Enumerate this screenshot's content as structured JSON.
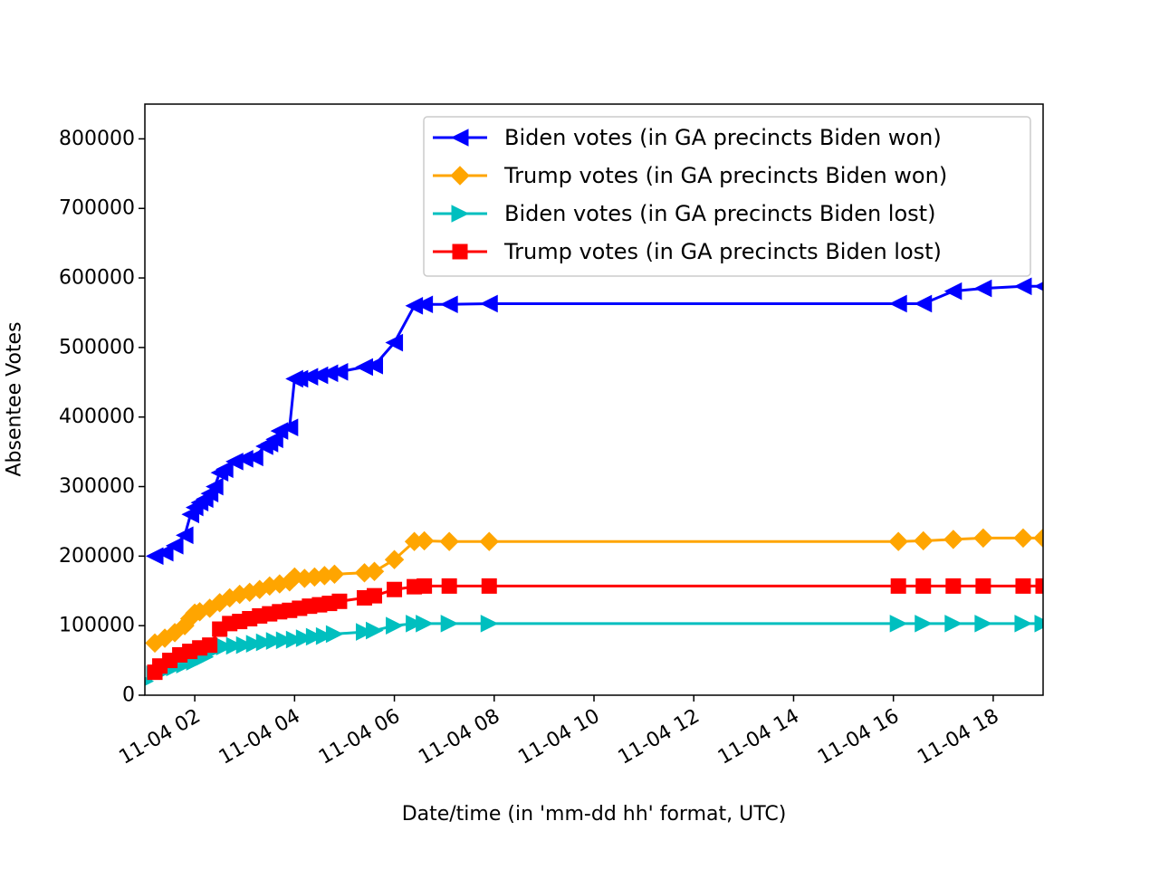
{
  "chart_data": {
    "type": "line",
    "title": "",
    "xlabel": "Date/time (in 'mm-dd hh' format, UTC)",
    "ylabel": "Absentee Votes",
    "xlim": [
      "11-04 01:00",
      "11-04 19:00"
    ],
    "ylim": [
      0,
      850000
    ],
    "legend_position": "top-right",
    "grid": false,
    "x_tick_labels": [
      "11-04 02",
      "11-04 04",
      "11-04 06",
      "11-04 08",
      "11-04 10",
      "11-04 12",
      "11-04 14",
      "11-04 16",
      "11-04 18"
    ],
    "y_tick_labels": [
      "0",
      "100000",
      "200000",
      "300000",
      "400000",
      "500000",
      "600000",
      "700000",
      "800000"
    ],
    "series": [
      {
        "name": "Biden votes (in GA precincts Biden won)",
        "color": "#0000ff",
        "marker": "triangle-left",
        "x": [
          "11-04 01:12",
          "11-04 01:24",
          "11-04 01:36",
          "11-04 01:48",
          "11-04 01:55",
          "11-04 02:00",
          "11-04 02:06",
          "11-04 02:12",
          "11-04 02:18",
          "11-04 02:24",
          "11-04 02:30",
          "11-04 02:36",
          "11-04 02:48",
          "11-04 03:00",
          "11-04 03:12",
          "11-04 03:24",
          "11-04 03:30",
          "11-04 03:36",
          "11-04 03:42",
          "11-04 03:54",
          "11-04 04:00",
          "11-04 04:06",
          "11-04 04:18",
          "11-04 04:30",
          "11-04 04:42",
          "11-04 04:54",
          "11-04 05:24",
          "11-04 05:36",
          "11-04 06:00",
          "11-04 06:24",
          "11-04 06:36",
          "11-04 07:06",
          "11-04 07:54",
          "11-04 16:06",
          "11-04 16:36",
          "11-04 17:12",
          "11-04 17:48",
          "11-04 18:36",
          "11-04 19:00"
        ],
        "y": [
          200000,
          205000,
          215000,
          230000,
          260000,
          270000,
          277000,
          282000,
          290000,
          300000,
          320000,
          325000,
          336000,
          340000,
          342000,
          358000,
          362000,
          368000,
          380000,
          385000,
          455000,
          455000,
          458000,
          460000,
          463000,
          465000,
          472000,
          474000,
          507000,
          560000,
          562000,
          562000,
          563000,
          563000,
          563000,
          581000,
          585000,
          588000,
          588000
        ]
      },
      {
        "name": "Trump votes (in GA precincts Biden won)",
        "color": "#ffa500",
        "marker": "diamond",
        "x": [
          "11-04 01:12",
          "11-04 01:24",
          "11-04 01:36",
          "11-04 01:48",
          "11-04 01:54",
          "11-04 02:00",
          "11-04 02:06",
          "11-04 02:18",
          "11-04 02:30",
          "11-04 02:42",
          "11-04 02:54",
          "11-04 03:06",
          "11-04 03:18",
          "11-04 03:30",
          "11-04 03:42",
          "11-04 03:54",
          "11-04 04:00",
          "11-04 04:12",
          "11-04 04:24",
          "11-04 04:36",
          "11-04 04:48",
          "11-04 05:24",
          "11-04 05:36",
          "11-04 06:00",
          "11-04 06:24",
          "11-04 06:36",
          "11-04 07:06",
          "11-04 07:54",
          "11-04 16:06",
          "11-04 16:36",
          "11-04 17:12",
          "11-04 17:48",
          "11-04 18:36",
          "11-04 19:00"
        ],
        "y": [
          75000,
          82000,
          90000,
          100000,
          110000,
          118000,
          120000,
          125000,
          133000,
          140000,
          145000,
          148000,
          152000,
          157000,
          160000,
          163000,
          170000,
          168000,
          170000,
          172000,
          174000,
          176000,
          178000,
          195000,
          221000,
          222000,
          221000,
          221000,
          221000,
          222000,
          224000,
          226000,
          226000,
          226000
        ]
      },
      {
        "name": "Biden votes (in GA precincts Biden lost)",
        "color": "#00bfbf",
        "marker": "triangle-right",
        "x": [
          "11-04 01:00",
          "11-04 01:12",
          "11-04 01:24",
          "11-04 01:36",
          "11-04 01:48",
          "11-04 02:00",
          "11-04 02:12",
          "11-04 02:24",
          "11-04 02:36",
          "11-04 02:48",
          "11-04 03:00",
          "11-04 03:12",
          "11-04 03:24",
          "11-04 03:36",
          "11-04 03:48",
          "11-04 04:00",
          "11-04 04:12",
          "11-04 04:24",
          "11-04 04:36",
          "11-04 04:48",
          "11-04 05:24",
          "11-04 05:36",
          "11-04 06:00",
          "11-04 06:24",
          "11-04 06:36",
          "11-04 07:06",
          "11-04 07:54",
          "11-04 16:06",
          "11-04 16:36",
          "11-04 17:12",
          "11-04 17:48",
          "11-04 18:36",
          "11-04 19:00"
        ],
        "y": [
          20000,
          30000,
          35000,
          40000,
          44000,
          48000,
          55000,
          65000,
          70000,
          71000,
          72000,
          74000,
          76000,
          78000,
          79000,
          80000,
          82000,
          84000,
          85000,
          88000,
          91000,
          93000,
          100000,
          103000,
          103000,
          103000,
          103000,
          103000,
          103000,
          103000,
          103000,
          103000,
          103000
        ]
      },
      {
        "name": "Trump votes (in GA precincts Biden lost)",
        "color": "#ff0000",
        "marker": "square",
        "x": [
          "11-04 01:12",
          "11-04 01:18",
          "11-04 01:30",
          "11-04 01:42",
          "11-04 01:54",
          "11-04 02:06",
          "11-04 02:18",
          "11-04 02:30",
          "11-04 02:42",
          "11-04 02:54",
          "11-04 03:06",
          "11-04 03:18",
          "11-04 03:30",
          "11-04 03:42",
          "11-04 03:54",
          "11-04 04:06",
          "11-04 04:18",
          "11-04 04:30",
          "11-04 04:42",
          "11-04 04:54",
          "11-04 05:24",
          "11-04 05:36",
          "11-04 06:00",
          "11-04 06:24",
          "11-04 06:36",
          "11-04 07:06",
          "11-04 07:54",
          "11-04 16:06",
          "11-04 16:36",
          "11-04 17:12",
          "11-04 17:48",
          "11-04 18:36",
          "11-04 19:00"
        ],
        "y": [
          33000,
          42000,
          50000,
          58000,
          63000,
          68000,
          72000,
          95000,
          103000,
          106000,
          110000,
          114000,
          117000,
          120000,
          122000,
          125000,
          128000,
          130000,
          132000,
          135000,
          140000,
          143000,
          152000,
          156000,
          157000,
          157000,
          157000,
          157000,
          157000,
          157000,
          157000,
          157000,
          157000
        ]
      }
    ]
  }
}
